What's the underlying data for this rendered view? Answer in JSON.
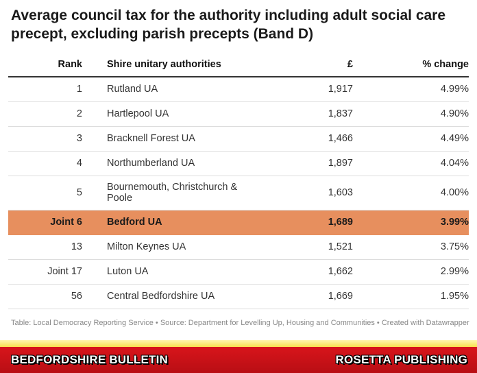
{
  "title": "Average council tax for the authority including adult social care precept, excluding parish precepts (Band D)",
  "chart_data": {
    "type": "table",
    "title": "Average council tax for the authority including adult social care precept, excluding parish precepts (Band D)",
    "columns": [
      "Rank",
      "Shire unitary authorities",
      "£",
      "% change"
    ],
    "rows": [
      {
        "rank": "1",
        "authority": "Rutland UA",
        "gbp": "1,917",
        "pct": "4.99%"
      },
      {
        "rank": "2",
        "authority": "Hartlepool UA",
        "gbp": "1,837",
        "pct": "4.90%"
      },
      {
        "rank": "3",
        "authority": "Bracknell Forest UA",
        "gbp": "1,466",
        "pct": "4.49%"
      },
      {
        "rank": "4",
        "authority": "Northumberland UA",
        "gbp": "1,897",
        "pct": "4.04%"
      },
      {
        "rank": "5",
        "authority": "Bournemouth, Christchurch & Poole",
        "gbp": "1,603",
        "pct": "4.00%"
      },
      {
        "rank": "Joint 6",
        "authority": "Bedford UA",
        "gbp": "1,689",
        "pct": "3.99%",
        "highlight": true
      },
      {
        "rank": "13",
        "authority": "Milton Keynes UA",
        "gbp": "1,521",
        "pct": "3.75%"
      },
      {
        "rank": "Joint 17",
        "authority": "Luton UA",
        "gbp": "1,662",
        "pct": "2.99%"
      },
      {
        "rank": "56",
        "authority": "Central Bedfordshire UA",
        "gbp": "1,669",
        "pct": "1.95%"
      }
    ],
    "highlight_color": "#e78f5e"
  },
  "footer": {
    "note": "Table: Local Democracy Reporting Service • Source: Department for Levelling Up, Housing and Communities • Created with Datawrapper"
  },
  "branding": {
    "left": "BEDFORDSHIRE BULLETIN",
    "right": "ROSETTA PUBLISHING",
    "bar_color": "#c8121a",
    "strip_color": "#f7d928"
  }
}
